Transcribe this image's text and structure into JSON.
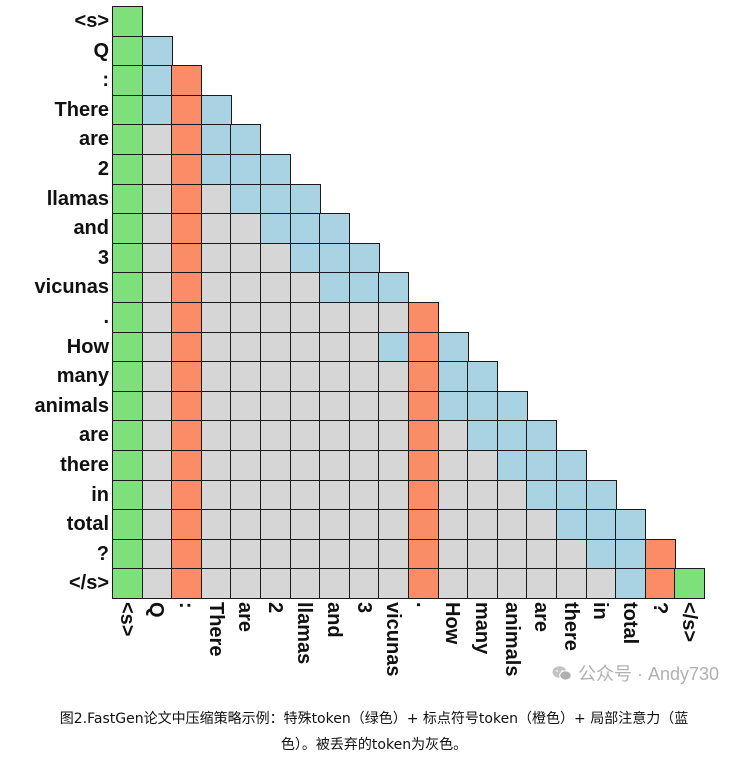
{
  "chart_data": {
    "type": "heatmap",
    "tokens": [
      "<s>",
      "Q",
      ":",
      "There",
      "are",
      "2",
      "llamas",
      "and",
      "3",
      "vicunas",
      ".",
      "How",
      "many",
      "animals",
      "are",
      "there",
      "in",
      "total",
      "?",
      "</s>"
    ],
    "legend": {
      "special": "#7de07a",
      "punctuation": "#fa8c68",
      "local": "#a9d3e3",
      "dropped": "#d6d6d6"
    },
    "rows": [
      [
        "special"
      ],
      [
        "special",
        "local"
      ],
      [
        "special",
        "local",
        "punctuation"
      ],
      [
        "special",
        "local",
        "punctuation",
        "local"
      ],
      [
        "special",
        "dropped",
        "punctuation",
        "local",
        "local"
      ],
      [
        "special",
        "dropped",
        "punctuation",
        "local",
        "local",
        "local"
      ],
      [
        "special",
        "dropped",
        "punctuation",
        "dropped",
        "local",
        "local",
        "local"
      ],
      [
        "special",
        "dropped",
        "punctuation",
        "dropped",
        "dropped",
        "local",
        "local",
        "local"
      ],
      [
        "special",
        "dropped",
        "punctuation",
        "dropped",
        "dropped",
        "dropped",
        "local",
        "local",
        "local"
      ],
      [
        "special",
        "dropped",
        "punctuation",
        "dropped",
        "dropped",
        "dropped",
        "dropped",
        "local",
        "local",
        "local"
      ],
      [
        "special",
        "dropped",
        "punctuation",
        "dropped",
        "dropped",
        "dropped",
        "dropped",
        "dropped",
        "dropped",
        "dropped",
        "punctuation"
      ],
      [
        "special",
        "dropped",
        "punctuation",
        "dropped",
        "dropped",
        "dropped",
        "dropped",
        "dropped",
        "dropped",
        "local",
        "punctuation",
        "local"
      ],
      [
        "special",
        "dropped",
        "punctuation",
        "dropped",
        "dropped",
        "dropped",
        "dropped",
        "dropped",
        "dropped",
        "dropped",
        "punctuation",
        "local",
        "local"
      ],
      [
        "special",
        "dropped",
        "punctuation",
        "dropped",
        "dropped",
        "dropped",
        "dropped",
        "dropped",
        "dropped",
        "dropped",
        "punctuation",
        "local",
        "local",
        "local"
      ],
      [
        "special",
        "dropped",
        "punctuation",
        "dropped",
        "dropped",
        "dropped",
        "dropped",
        "dropped",
        "dropped",
        "dropped",
        "punctuation",
        "dropped",
        "local",
        "local",
        "local"
      ],
      [
        "special",
        "dropped",
        "punctuation",
        "dropped",
        "dropped",
        "dropped",
        "dropped",
        "dropped",
        "dropped",
        "dropped",
        "punctuation",
        "dropped",
        "dropped",
        "local",
        "local",
        "local"
      ],
      [
        "special",
        "dropped",
        "punctuation",
        "dropped",
        "dropped",
        "dropped",
        "dropped",
        "dropped",
        "dropped",
        "dropped",
        "punctuation",
        "dropped",
        "dropped",
        "dropped",
        "local",
        "local",
        "local"
      ],
      [
        "special",
        "dropped",
        "punctuation",
        "dropped",
        "dropped",
        "dropped",
        "dropped",
        "dropped",
        "dropped",
        "dropped",
        "punctuation",
        "dropped",
        "dropped",
        "dropped",
        "dropped",
        "local",
        "local",
        "local"
      ],
      [
        "special",
        "dropped",
        "punctuation",
        "dropped",
        "dropped",
        "dropped",
        "dropped",
        "dropped",
        "dropped",
        "dropped",
        "punctuation",
        "dropped",
        "dropped",
        "dropped",
        "dropped",
        "dropped",
        "local",
        "local",
        "punctuation"
      ],
      [
        "special",
        "dropped",
        "punctuation",
        "dropped",
        "dropped",
        "dropped",
        "dropped",
        "dropped",
        "dropped",
        "dropped",
        "punctuation",
        "dropped",
        "dropped",
        "dropped",
        "dropped",
        "dropped",
        "dropped",
        "local",
        "punctuation",
        "special"
      ]
    ]
  },
  "watermark": {
    "text": "公众号 · Andy730",
    "icon": "wechat-icon"
  },
  "caption": {
    "line1": "图2.FastGen论文中压缩策略示例：特殊token（绿色）+ 标点符号token（橙色）+ 局部注意力（蓝",
    "line2": "色）。被丢弃的token为灰色。"
  }
}
